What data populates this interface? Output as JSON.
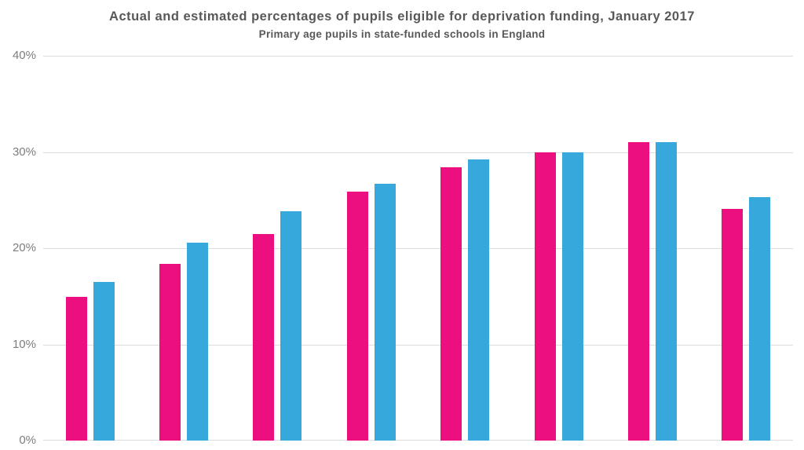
{
  "header": {
    "title": "Actual and estimated percentages of pupils eligible for deprivation funding, January 2017",
    "subtitle": "Primary age pupils in state-funded schools in England"
  },
  "colors": {
    "actual_bar": "#EB0F7F",
    "estimated_bar": "#37A8DC",
    "heading_text": "#57585A",
    "axis_text": "#7C7D80",
    "gridline": "#DCDCDC"
  },
  "chart_data": {
    "type": "bar",
    "title": "Actual and estimated percentages of pupils eligible for deprivation funding, January 2017",
    "subtitle": "Primary age pupils in state-funded schools in England",
    "group_count": 8,
    "x_tick_labels": [],
    "series": [
      {
        "name": "actual",
        "color": "#EB0F7F",
        "values": [
          14.9,
          18.4,
          21.5,
          25.9,
          28.4,
          30.0,
          31.0,
          24.1
        ]
      },
      {
        "name": "estimated",
        "color": "#37A8DC",
        "values": [
          16.5,
          20.6,
          23.8,
          26.7,
          29.2,
          30.0,
          31.0,
          25.3
        ]
      }
    ],
    "ylim": [
      0,
      40
    ],
    "y_ticks": [
      0,
      10,
      20,
      30,
      40
    ],
    "y_tick_labels": [
      "0%",
      "10%",
      "20%",
      "30%",
      "40%"
    ],
    "grid": true,
    "legend": "none",
    "xlabel": "",
    "ylabel": ""
  }
}
